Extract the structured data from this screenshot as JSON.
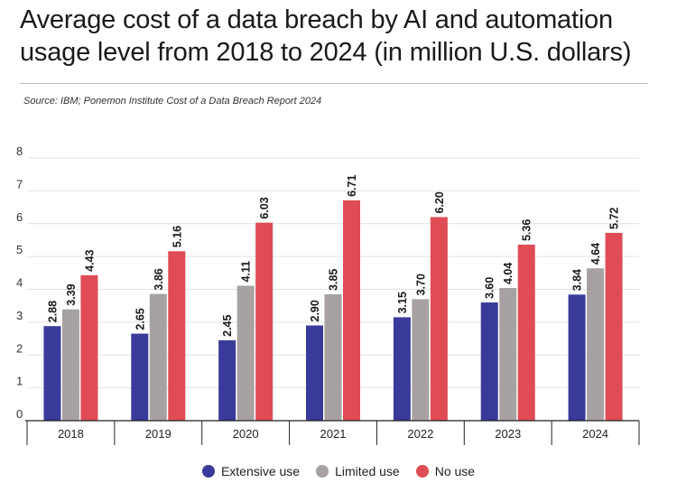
{
  "title": "Average cost of a data breach by AI and automation usage level from 2018 to 2024 (in million U.S. dollars)",
  "source": "Source: IBM; Ponemon Institute Cost of a Data Breach Report 2024",
  "chart_data": {
    "type": "bar",
    "categories": [
      "2018",
      "2019",
      "2020",
      "2021",
      "2022",
      "2023",
      "2024"
    ],
    "series": [
      {
        "name": "Extensive use",
        "color": "#3a3a9a",
        "values": [
          2.88,
          2.65,
          2.45,
          2.9,
          3.15,
          3.6,
          3.84
        ],
        "labels": [
          "2.88",
          "2.65",
          "2.45",
          "2.90",
          "3.15",
          "3.60",
          "3.84"
        ]
      },
      {
        "name": "Limited use",
        "color": "#a7a2a1",
        "values": [
          3.39,
          3.86,
          4.11,
          3.85,
          3.7,
          4.04,
          4.64
        ],
        "labels": [
          "3.39",
          "3.86",
          "4.11",
          "3.85",
          "3.70",
          "4.04",
          "4.64"
        ]
      },
      {
        "name": "No use",
        "color": "#df4c55",
        "values": [
          4.43,
          5.16,
          6.03,
          6.71,
          6.2,
          5.36,
          5.72
        ],
        "labels": [
          "4.43",
          "5.16",
          "6.03",
          "6.71",
          "6.20",
          "5.36",
          "5.72"
        ]
      }
    ],
    "yticks": [
      "0",
      "1",
      "2",
      "3",
      "4",
      "5",
      "6",
      "7",
      "8"
    ],
    "ylim": [
      0,
      8
    ],
    "grid": true,
    "legend_position": "bottom"
  }
}
